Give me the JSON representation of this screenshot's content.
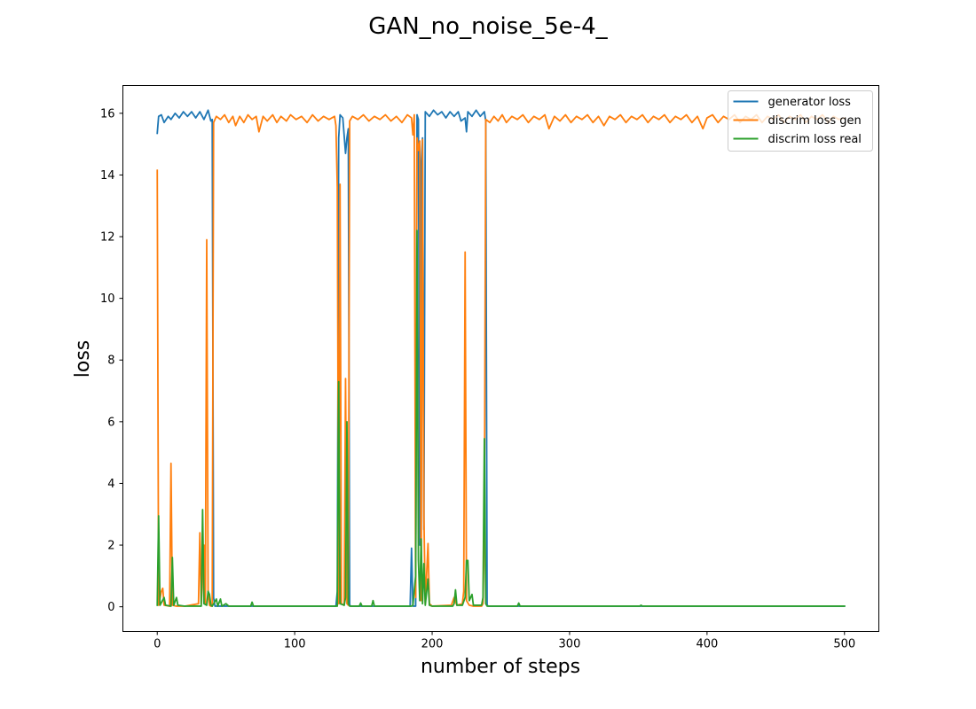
{
  "chart_data": {
    "type": "line",
    "title": "GAN_no_noise_5e-4_",
    "xlabel": "number of steps",
    "ylabel": "loss",
    "xlim": [
      -25,
      525
    ],
    "ylim": [
      -0.8,
      16.9
    ],
    "xticks": [
      0,
      100,
      200,
      300,
      400,
      500
    ],
    "yticks": [
      0,
      2,
      4,
      6,
      8,
      10,
      12,
      14,
      16
    ],
    "grid": false,
    "legend_position": "top-right",
    "series": [
      {
        "name": "generator loss",
        "color": "#1f77b4",
        "points": [
          [
            0,
            15.35
          ],
          [
            1,
            15.9
          ],
          [
            3,
            15.95
          ],
          [
            5,
            15.7
          ],
          [
            8,
            15.9
          ],
          [
            10,
            15.8
          ],
          [
            13,
            16.0
          ],
          [
            16,
            15.85
          ],
          [
            19,
            16.05
          ],
          [
            22,
            15.9
          ],
          [
            25,
            16.05
          ],
          [
            28,
            15.85
          ],
          [
            31,
            16.05
          ],
          [
            34,
            15.8
          ],
          [
            37,
            16.1
          ],
          [
            39,
            15.75
          ],
          [
            40,
            15.8
          ],
          [
            41,
            0.3
          ],
          [
            42,
            0.02
          ],
          [
            60,
            0.02
          ],
          [
            100,
            0.02
          ],
          [
            130,
            0.02
          ],
          [
            131,
            0.5
          ],
          [
            132,
            15.2
          ],
          [
            133,
            15.95
          ],
          [
            135,
            15.85
          ],
          [
            137,
            14.7
          ],
          [
            138,
            15.2
          ],
          [
            139,
            15.5
          ],
          [
            140,
            0.05
          ],
          [
            141,
            0.02
          ],
          [
            160,
            0.02
          ],
          [
            184,
            0.02
          ],
          [
            185,
            1.9
          ],
          [
            186,
            0.02
          ],
          [
            188,
            0.02
          ],
          [
            189,
            15.95
          ],
          [
            190,
            15.8
          ],
          [
            191,
            2.0
          ],
          [
            192,
            14.3
          ],
          [
            193,
            15.2
          ],
          [
            194,
            2.5
          ],
          [
            195,
            16.05
          ],
          [
            198,
            15.9
          ],
          [
            201,
            16.1
          ],
          [
            204,
            15.95
          ],
          [
            207,
            16.05
          ],
          [
            210,
            15.85
          ],
          [
            213,
            16.05
          ],
          [
            216,
            15.9
          ],
          [
            219,
            16.05
          ],
          [
            221,
            15.75
          ],
          [
            224,
            15.85
          ],
          [
            225,
            15.4
          ],
          [
            226,
            16.05
          ],
          [
            229,
            15.9
          ],
          [
            232,
            16.1
          ],
          [
            235,
            15.9
          ],
          [
            238,
            16.05
          ],
          [
            239,
            15.75
          ],
          [
            240,
            0.05
          ],
          [
            241,
            0.02
          ],
          [
            300,
            0.02
          ],
          [
            400,
            0.02
          ],
          [
            500,
            0.02
          ]
        ]
      },
      {
        "name": "discrim loss gen",
        "color": "#ff7f0e",
        "points": [
          [
            0,
            14.15
          ],
          [
            1,
            0.05
          ],
          [
            3,
            0.5
          ],
          [
            4,
            0.6
          ],
          [
            5,
            0.05
          ],
          [
            9,
            0.02
          ],
          [
            10,
            4.65
          ],
          [
            11,
            0.05
          ],
          [
            14,
            0.02
          ],
          [
            20,
            0.02
          ],
          [
            30,
            0.1
          ],
          [
            31,
            2.4
          ],
          [
            32,
            0.1
          ],
          [
            34,
            2.0
          ],
          [
            35,
            0.1
          ],
          [
            36,
            11.9
          ],
          [
            37,
            0.5
          ],
          [
            38,
            0.05
          ],
          [
            39,
            0.02
          ],
          [
            40,
            0.02
          ],
          [
            41,
            15.7
          ],
          [
            43,
            15.9
          ],
          [
            46,
            15.8
          ],
          [
            49,
            15.95
          ],
          [
            52,
            15.7
          ],
          [
            55,
            15.9
          ],
          [
            57,
            15.6
          ],
          [
            60,
            15.9
          ],
          [
            63,
            15.7
          ],
          [
            66,
            15.95
          ],
          [
            69,
            15.8
          ],
          [
            72,
            15.9
          ],
          [
            74,
            15.4
          ],
          [
            77,
            15.9
          ],
          [
            80,
            15.75
          ],
          [
            84,
            15.95
          ],
          [
            87,
            15.7
          ],
          [
            90,
            15.9
          ],
          [
            94,
            15.75
          ],
          [
            97,
            15.95
          ],
          [
            101,
            15.8
          ],
          [
            105,
            15.9
          ],
          [
            109,
            15.7
          ],
          [
            113,
            15.95
          ],
          [
            117,
            15.75
          ],
          [
            121,
            15.9
          ],
          [
            125,
            15.8
          ],
          [
            129,
            15.9
          ],
          [
            130,
            15.6
          ],
          [
            131,
            13.6
          ],
          [
            132,
            0.1
          ],
          [
            133,
            13.7
          ],
          [
            134,
            0.1
          ],
          [
            136,
            0.05
          ],
          [
            137,
            7.4
          ],
          [
            138,
            0.1
          ],
          [
            139,
            0.05
          ],
          [
            140,
            15.75
          ],
          [
            142,
            15.9
          ],
          [
            146,
            15.8
          ],
          [
            150,
            15.95
          ],
          [
            154,
            15.75
          ],
          [
            158,
            15.9
          ],
          [
            162,
            15.8
          ],
          [
            166,
            15.95
          ],
          [
            170,
            15.75
          ],
          [
            174,
            15.9
          ],
          [
            178,
            15.7
          ],
          [
            182,
            15.95
          ],
          [
            185,
            15.85
          ],
          [
            186,
            15.3
          ],
          [
            187,
            15.95
          ],
          [
            188,
            0.3
          ],
          [
            189,
            15.2
          ],
          [
            190,
            14.8
          ],
          [
            191,
            15.1
          ],
          [
            192,
            0.2
          ],
          [
            193,
            15.15
          ],
          [
            194,
            2.95
          ],
          [
            195,
            0.1
          ],
          [
            197,
            2.05
          ],
          [
            198,
            0.1
          ],
          [
            200,
            0.02
          ],
          [
            214,
            0.05
          ],
          [
            216,
            0.3
          ],
          [
            218,
            0.05
          ],
          [
            222,
            0.1
          ],
          [
            223,
            0.5
          ],
          [
            224,
            11.5
          ],
          [
            225,
            0.2
          ],
          [
            227,
            0.05
          ],
          [
            230,
            0.02
          ],
          [
            236,
            0.02
          ],
          [
            237,
            0.1
          ],
          [
            238,
            2.6
          ],
          [
            239,
            15.8
          ],
          [
            242,
            15.7
          ],
          [
            245,
            15.9
          ],
          [
            248,
            15.75
          ],
          [
            251,
            15.95
          ],
          [
            254,
            15.7
          ],
          [
            258,
            15.9
          ],
          [
            262,
            15.8
          ],
          [
            266,
            15.95
          ],
          [
            270,
            15.7
          ],
          [
            274,
            15.9
          ],
          [
            278,
            15.8
          ],
          [
            282,
            15.95
          ],
          [
            285,
            15.5
          ],
          [
            289,
            15.9
          ],
          [
            293,
            15.75
          ],
          [
            297,
            15.95
          ],
          [
            301,
            15.7
          ],
          [
            305,
            15.9
          ],
          [
            309,
            15.8
          ],
          [
            313,
            15.95
          ],
          [
            317,
            15.7
          ],
          [
            321,
            15.9
          ],
          [
            325,
            15.6
          ],
          [
            329,
            15.9
          ],
          [
            333,
            15.8
          ],
          [
            337,
            15.95
          ],
          [
            341,
            15.7
          ],
          [
            345,
            15.9
          ],
          [
            349,
            15.8
          ],
          [
            353,
            15.95
          ],
          [
            357,
            15.7
          ],
          [
            361,
            15.9
          ],
          [
            365,
            15.8
          ],
          [
            369,
            15.95
          ],
          [
            373,
            15.7
          ],
          [
            377,
            15.9
          ],
          [
            381,
            15.8
          ],
          [
            385,
            15.95
          ],
          [
            389,
            15.7
          ],
          [
            393,
            15.9
          ],
          [
            397,
            15.5
          ],
          [
            400,
            15.85
          ],
          [
            404,
            15.95
          ],
          [
            408,
            15.7
          ],
          [
            412,
            15.9
          ],
          [
            416,
            15.8
          ],
          [
            420,
            15.95
          ],
          [
            424,
            15.7
          ],
          [
            428,
            15.9
          ],
          [
            432,
            15.8
          ],
          [
            436,
            15.95
          ],
          [
            440,
            15.7
          ],
          [
            444,
            15.9
          ],
          [
            448,
            15.8
          ],
          [
            452,
            15.95
          ],
          [
            456,
            15.7
          ],
          [
            460,
            15.9
          ],
          [
            464,
            15.8
          ],
          [
            468,
            15.95
          ],
          [
            472,
            15.7
          ],
          [
            476,
            15.9
          ],
          [
            480,
            15.8
          ],
          [
            484,
            15.95
          ],
          [
            488,
            15.7
          ],
          [
            492,
            15.9
          ],
          [
            496,
            15.8
          ],
          [
            500,
            15.85
          ]
        ]
      },
      {
        "name": "discrim loss real",
        "color": "#2ca02c",
        "points": [
          [
            0,
            0.05
          ],
          [
            1,
            2.95
          ],
          [
            2,
            0.05
          ],
          [
            5,
            0.3
          ],
          [
            6,
            0.05
          ],
          [
            10,
            0.02
          ],
          [
            11,
            1.6
          ],
          [
            12,
            0.05
          ],
          [
            14,
            0.3
          ],
          [
            15,
            0.05
          ],
          [
            20,
            0.02
          ],
          [
            32,
            0.02
          ],
          [
            33,
            3.15
          ],
          [
            34,
            0.1
          ],
          [
            36,
            0.05
          ],
          [
            37,
            0.5
          ],
          [
            38,
            0.4
          ],
          [
            39,
            0.05
          ],
          [
            40,
            0.02
          ],
          [
            43,
            0.25
          ],
          [
            44,
            0.02
          ],
          [
            46,
            0.25
          ],
          [
            47,
            0.02
          ],
          [
            50,
            0.1
          ],
          [
            52,
            0.02
          ],
          [
            68,
            0.02
          ],
          [
            69,
            0.15
          ],
          [
            70,
            0.02
          ],
          [
            100,
            0.02
          ],
          [
            131,
            0.02
          ],
          [
            132,
            7.3
          ],
          [
            133,
            0.1
          ],
          [
            136,
            0.05
          ],
          [
            137,
            0.3
          ],
          [
            138,
            6.0
          ],
          [
            139,
            0.1
          ],
          [
            140,
            0.02
          ],
          [
            147,
            0.02
          ],
          [
            148,
            0.12
          ],
          [
            149,
            0.02
          ],
          [
            156,
            0.02
          ],
          [
            157,
            0.2
          ],
          [
            158,
            0.02
          ],
          [
            185,
            0.02
          ],
          [
            186,
            0.05
          ],
          [
            188,
            1.0
          ],
          [
            189,
            12.2
          ],
          [
            190,
            1.5
          ],
          [
            191,
            0.2
          ],
          [
            192,
            2.2
          ],
          [
            193,
            0.1
          ],
          [
            194,
            1.4
          ],
          [
            195,
            0.05
          ],
          [
            197,
            0.9
          ],
          [
            198,
            0.05
          ],
          [
            200,
            0.02
          ],
          [
            215,
            0.02
          ],
          [
            216,
            0.1
          ],
          [
            217,
            0.55
          ],
          [
            218,
            0.05
          ],
          [
            222,
            0.05
          ],
          [
            224,
            0.3
          ],
          [
            225,
            1.5
          ],
          [
            226,
            1.5
          ],
          [
            227,
            0.2
          ],
          [
            229,
            0.4
          ],
          [
            230,
            0.05
          ],
          [
            236,
            0.05
          ],
          [
            237,
            0.3
          ],
          [
            238,
            5.45
          ],
          [
            239,
            0.1
          ],
          [
            240,
            0.02
          ],
          [
            262,
            0.02
          ],
          [
            263,
            0.12
          ],
          [
            264,
            0.02
          ],
          [
            300,
            0.02
          ],
          [
            351,
            0.02
          ],
          [
            352,
            0.05
          ],
          [
            353,
            0.02
          ],
          [
            400,
            0.02
          ],
          [
            500,
            0.02
          ]
        ]
      }
    ]
  }
}
